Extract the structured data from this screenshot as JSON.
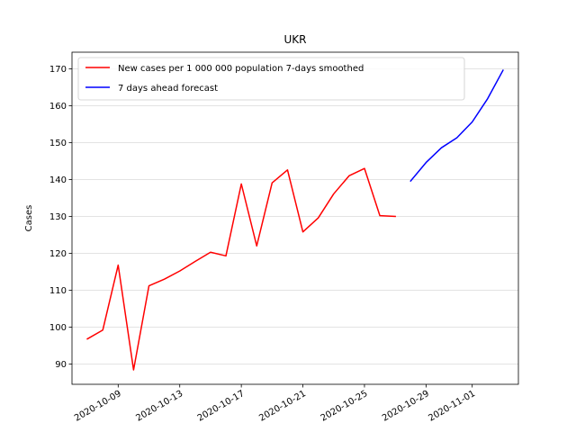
{
  "chart_data": {
    "type": "line",
    "title": "UKR",
    "xlabel": "",
    "ylabel": "Cases",
    "ylim": [
      84.5,
      174.5
    ],
    "xlim": [
      "2020-10-06",
      "2020-11-04"
    ],
    "y_ticks": [
      90,
      100,
      110,
      120,
      130,
      140,
      150,
      160,
      170
    ],
    "x_ticks": [
      "2020-10-09",
      "2020-10-13",
      "2020-10-17",
      "2020-10-21",
      "2020-10-25",
      "2020-10-29",
      "2020-11-01"
    ],
    "grid": "horizontal",
    "legend_position": "top-left",
    "series": [
      {
        "name": "New cases per 1 000 000 population 7-days smoothed",
        "color": "#ff0000",
        "x": [
          "2020-10-07",
          "2020-10-08",
          "2020-10-09",
          "2020-10-10",
          "2020-10-11",
          "2020-10-12",
          "2020-10-13",
          "2020-10-14",
          "2020-10-15",
          "2020-10-16",
          "2020-10-17",
          "2020-10-18",
          "2020-10-19",
          "2020-10-20",
          "2020-10-21",
          "2020-10-22",
          "2020-10-23",
          "2020-10-24",
          "2020-10-25",
          "2020-10-26",
          "2020-10-27"
        ],
        "y": [
          96.8,
          99.2,
          116.8,
          88.4,
          111.2,
          113.0,
          115.2,
          117.8,
          120.3,
          119.3,
          138.8,
          122.0,
          139.1,
          142.6,
          125.8,
          129.6,
          136.1,
          141.0,
          143.0,
          130.2,
          130.0
        ]
      },
      {
        "name": "7 days ahead forecast",
        "color": "#0000ff",
        "x": [
          "2020-10-28",
          "2020-10-29",
          "2020-10-30",
          "2020-10-31",
          "2020-11-01",
          "2020-11-02",
          "2020-11-03"
        ],
        "y": [
          139.6,
          144.6,
          148.6,
          151.3,
          155.6,
          161.9,
          169.6
        ]
      }
    ]
  }
}
